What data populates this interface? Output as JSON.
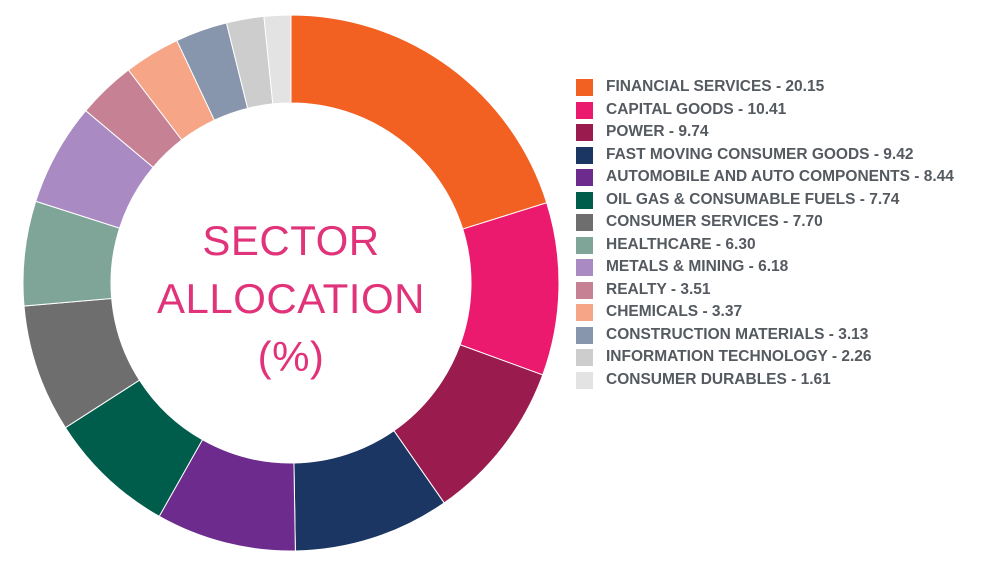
{
  "chart_data": {
    "type": "pie",
    "title_lines": [
      "SECTOR",
      "ALLOCATION",
      "(%)"
    ],
    "legend_position": "right",
    "slices": [
      {
        "label": "FINANCIAL SERVICES - 20.15",
        "value": 20.15,
        "color": "#f26122"
      },
      {
        "label": "CAPITAL GOODS - 10.41",
        "value": 10.41,
        "color": "#ec1a6e"
      },
      {
        "label": "POWER - 9.74",
        "value": 9.74,
        "color": "#9a1b4e"
      },
      {
        "label": "FAST MOVING CONSUMER GOODS - 9.42",
        "value": 9.42,
        "color": "#1b3663"
      },
      {
        "label": "AUTOMOBILE AND AUTO COMPONENTS - 8.44",
        "value": 8.44,
        "color": "#6d2b8e"
      },
      {
        "label": "OIL GAS & CONSUMABLE FUELS - 7.74",
        "value": 7.74,
        "color": "#005c4b"
      },
      {
        "label": "CONSUMER SERVICES - 7.70",
        "value": 7.7,
        "color": "#6e6e6e"
      },
      {
        "label": "HEALTHCARE - 6.30",
        "value": 6.3,
        "color": "#7ea597"
      },
      {
        "label": "METALS & MINING - 6.18",
        "value": 6.18,
        "color": "#a98ac3"
      },
      {
        "label": "REALTY - 3.51",
        "value": 3.51,
        "color": "#c68195"
      },
      {
        "label": "CHEMICALS - 3.37",
        "value": 3.37,
        "color": "#f6a587"
      },
      {
        "label": "CONSTRUCTION MATERIALS - 3.13",
        "value": 3.13,
        "color": "#8795ad"
      },
      {
        "label": "INFORMATION TECHNOLOGY - 2.26",
        "value": 2.26,
        "color": "#cdcdcd"
      },
      {
        "label": "CONSUMER DURABLES - 1.61",
        "value": 1.61,
        "color": "#e3e3e3"
      }
    ]
  }
}
